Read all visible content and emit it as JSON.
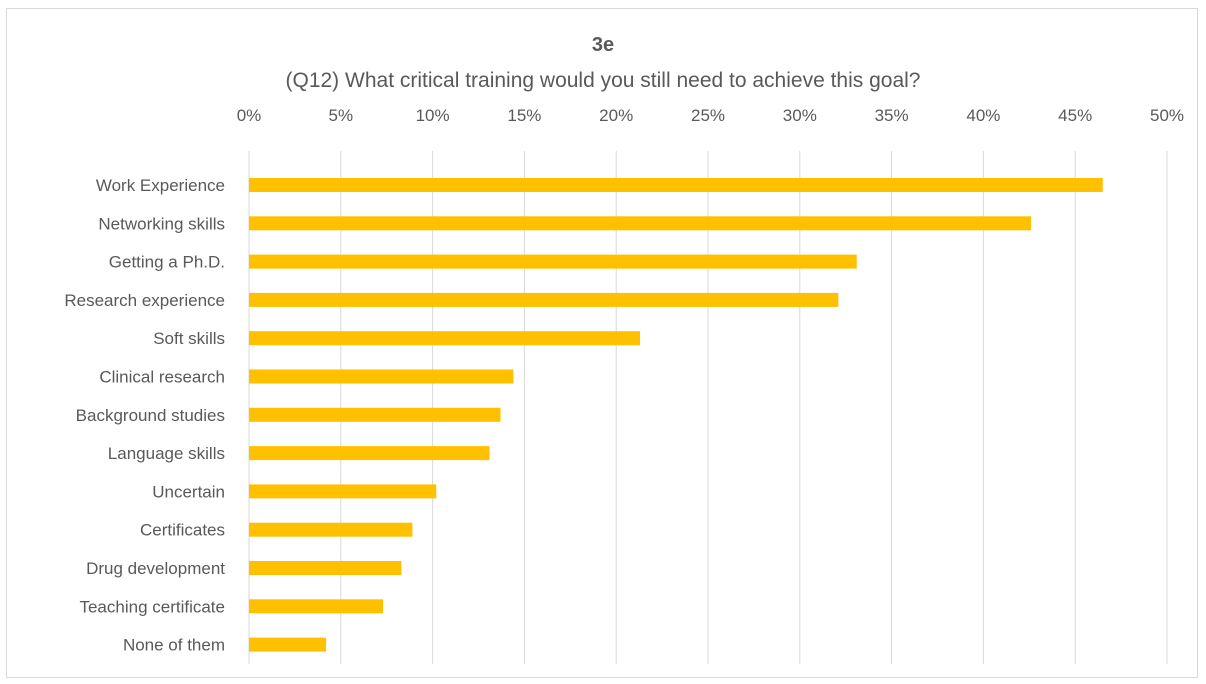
{
  "chart_data": {
    "type": "bar",
    "orientation": "horizontal",
    "title": "3e",
    "subtitle": "(Q12) What critical training would you still need to achieve this goal?",
    "xlabel": "",
    "ylabel": "",
    "categories": [
      "Work Experience",
      "Networking skills",
      "Getting a Ph.D.",
      "Research experience",
      "Soft skills",
      "Clinical research",
      "Background studies",
      "Language skills",
      "Uncertain",
      "Certificates",
      "Drug development",
      "Teaching certificate",
      "None of them"
    ],
    "values": [
      46.5,
      42.6,
      33.1,
      32.1,
      21.3,
      14.4,
      13.7,
      13.1,
      10.2,
      8.9,
      8.3,
      7.3,
      4.2
    ],
    "xlim": [
      0,
      50
    ],
    "x_ticks": [
      0,
      5,
      10,
      15,
      20,
      25,
      30,
      35,
      40,
      45,
      50
    ],
    "tick_labels": [
      "0%",
      "5%",
      "10%",
      "15%",
      "20%",
      "25%",
      "30%",
      "35%",
      "40%",
      "45%",
      "50%"
    ],
    "x_axis_position": "top",
    "grid": true,
    "legend": "none",
    "bar_color": "#FFC000"
  }
}
